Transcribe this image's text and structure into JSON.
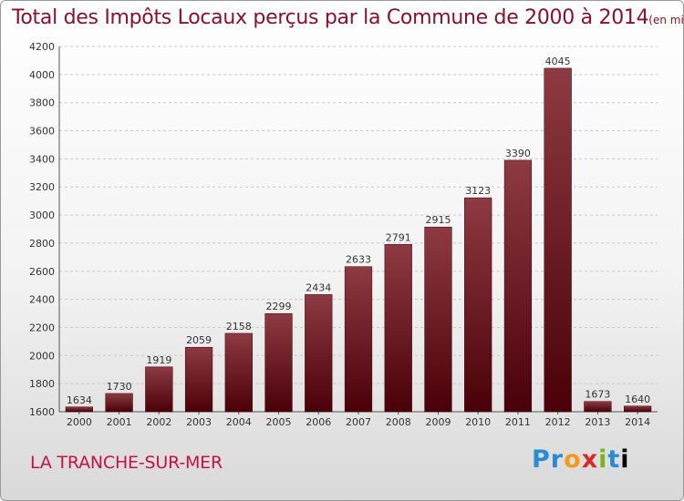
{
  "header": {
    "title": "Total des Impôts Locaux perçus par la Commune de 2000 à 2014",
    "subtitle": "(en milliers d'€)"
  },
  "footer": {
    "commune": "LA TRANCHE-SUR-MER",
    "brand": "Proxiti"
  },
  "colors": {
    "bar_top": "#8e3a42",
    "bar_bottom": "#4a0008",
    "title": "#8a1030",
    "commune": "#c8104a"
  },
  "chart_data": {
    "type": "bar",
    "title": "Total des Impôts Locaux perçus par la Commune de 2000 à 2014",
    "xlabel": "",
    "ylabel": "",
    "categories": [
      "2000",
      "2001",
      "2002",
      "2003",
      "2004",
      "2005",
      "2006",
      "2007",
      "2008",
      "2009",
      "2010",
      "2011",
      "2012",
      "2013",
      "2014"
    ],
    "values": [
      1634,
      1730,
      1919,
      2059,
      2158,
      2299,
      2434,
      2633,
      2791,
      2915,
      3123,
      3390,
      4045,
      1673,
      1640
    ],
    "ylim": [
      1600,
      4200
    ],
    "yticks": [
      1600,
      1800,
      2000,
      2200,
      2400,
      2600,
      2800,
      3000,
      3200,
      3400,
      3600,
      3800,
      4000,
      4200
    ],
    "grid": true,
    "legend": "none"
  }
}
